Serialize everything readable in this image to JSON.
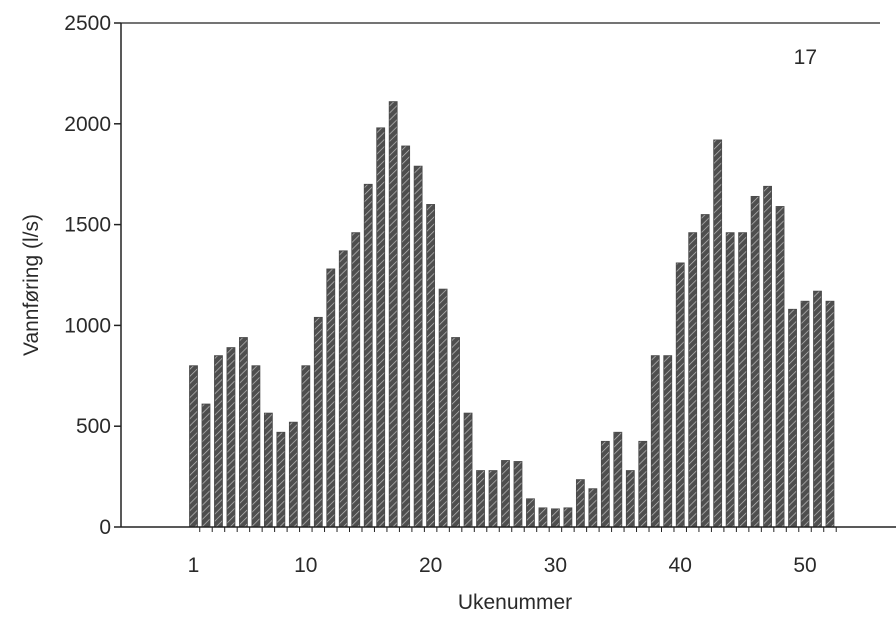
{
  "chart_data": {
    "type": "bar",
    "title": "",
    "panel_label": "17",
    "xlabel": "Ukenummer",
    "ylabel": "Vannføring (l/s)",
    "ylim": [
      0,
      2500
    ],
    "yticks": [
      0,
      500,
      1000,
      1500,
      2000,
      2500
    ],
    "xticks": [
      1,
      10,
      20,
      30,
      40,
      50
    ],
    "grid": false,
    "legend": "none",
    "bar_color": "#4a4a4a",
    "x": [
      1,
      2,
      3,
      4,
      5,
      6,
      7,
      8,
      9,
      10,
      11,
      12,
      13,
      14,
      15,
      16,
      17,
      18,
      19,
      20,
      21,
      22,
      23,
      24,
      25,
      26,
      27,
      28,
      29,
      30,
      31,
      32,
      33,
      34,
      35,
      36,
      37,
      38,
      39,
      40,
      41,
      42,
      43,
      44,
      45,
      46,
      47,
      48,
      49,
      50,
      51,
      52
    ],
    "values": [
      800,
      610,
      850,
      890,
      940,
      800,
      565,
      470,
      520,
      800,
      1040,
      1280,
      1370,
      1460,
      1700,
      1980,
      2110,
      1890,
      1790,
      1600,
      1180,
      940,
      565,
      280,
      280,
      330,
      325,
      140,
      95,
      90,
      95,
      235,
      190,
      425,
      470,
      280,
      425,
      850,
      850,
      1310,
      1460,
      1550,
      1920,
      1460,
      1460,
      1640,
      1690,
      1590,
      1080,
      1120,
      1170,
      1120
    ]
  }
}
